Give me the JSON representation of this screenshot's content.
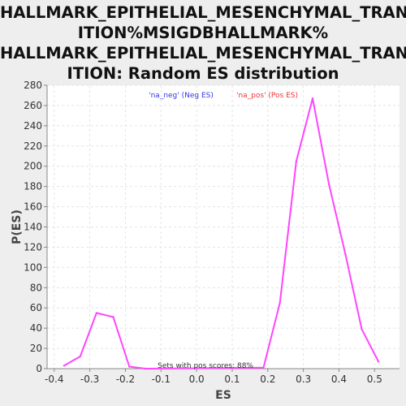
{
  "chart_data": {
    "type": "line",
    "title_lines": [
      "HALLMARK_EPITHELIAL_MESENCHYMAL_TRANS",
      "ITION%MSIGDBHALLMARK%",
      "HALLMARK_EPITHELIAL_MESENCHYMAL_TRANS",
      "ITION: Random ES distribution"
    ],
    "xlabel": "ES",
    "ylabel": "P(ES)",
    "xlim": [
      -0.42,
      0.57
    ],
    "ylim": [
      0,
      280
    ],
    "x_ticks": [
      "-0.4",
      "-0.3",
      "-0.2",
      "-0.1",
      "0.0",
      "0.1",
      "0.2",
      "0.3",
      "0.4",
      "0.5"
    ],
    "y_ticks": [
      "0",
      "20",
      "40",
      "60",
      "80",
      "100",
      "120",
      "140",
      "160",
      "180",
      "200",
      "220",
      "240",
      "260",
      "280"
    ],
    "grid": true,
    "legend_position": "top-center",
    "series": [
      {
        "name": "'na_neg' (Neg ES)",
        "color": "#3333ee",
        "x": [],
        "y": []
      },
      {
        "name": "'na_pos' (Pos ES)",
        "color": "#ee3333",
        "x": [],
        "y": []
      },
      {
        "color": "#ff44ff",
        "x": [
          -0.372,
          -0.327,
          -0.281,
          -0.234,
          -0.189,
          -0.143,
          0.188,
          0.234,
          0.28,
          0.326,
          0.372,
          0.418,
          0.464,
          0.511
        ],
        "y": [
          3,
          12,
          55,
          51,
          2,
          0,
          1,
          65,
          205,
          267,
          182,
          113,
          39,
          7
        ]
      }
    ],
    "annotations": [
      "Sets with pos scores: 88%"
    ]
  }
}
